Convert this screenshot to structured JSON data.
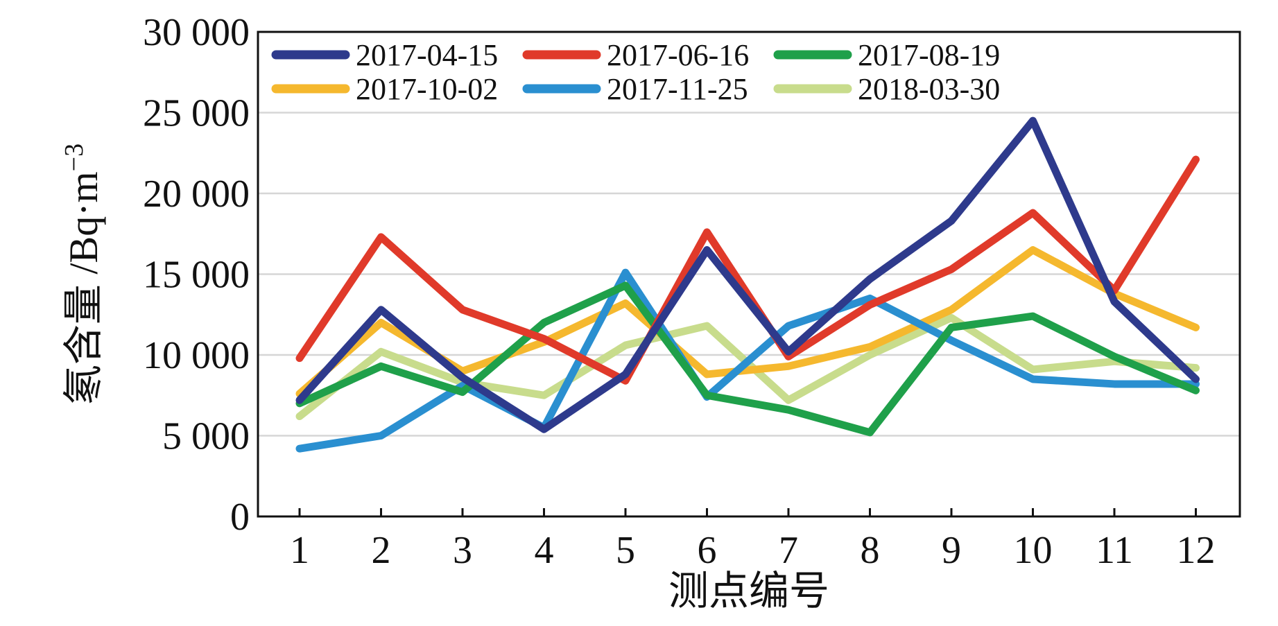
{
  "chart_data": {
    "type": "line",
    "title": "",
    "xlabel": "测点编号",
    "ylabel": "氡含量 /Bq·m",
    "ylabel_exponent": "−3",
    "categories": [
      "1",
      "2",
      "3",
      "4",
      "5",
      "6",
      "7",
      "8",
      "9",
      "10",
      "11",
      "12"
    ],
    "ylim": [
      0,
      30000
    ],
    "yticks": [
      {
        "value": 0,
        "label": "0"
      },
      {
        "value": 5000,
        "label": "5 000"
      },
      {
        "value": 10000,
        "label": "10 000"
      },
      {
        "value": 15000,
        "label": "15 000"
      },
      {
        "value": 20000,
        "label": "20 000"
      },
      {
        "value": 25000,
        "label": "25 000"
      },
      {
        "value": 30000,
        "label": "30 000"
      }
    ],
    "grid": true,
    "legend_position": "top-left",
    "series": [
      {
        "name": "2017-04-15",
        "color": "#2e3a8c",
        "values": [
          7200,
          12800,
          8600,
          5400,
          8800,
          16500,
          10200,
          14700,
          18300,
          24500,
          13300,
          8500
        ]
      },
      {
        "name": "2017-06-16",
        "color": "#e03a2a",
        "values": [
          9800,
          17300,
          12800,
          11000,
          8400,
          17600,
          9900,
          13100,
          15300,
          18800,
          14000,
          22100
        ]
      },
      {
        "name": "2017-08-19",
        "color": "#1fa04a",
        "values": [
          7000,
          9300,
          7700,
          12000,
          14300,
          7500,
          6600,
          5200,
          11700,
          12400,
          9900,
          7800
        ]
      },
      {
        "name": "2017-10-02",
        "color": "#f5b82e",
        "values": [
          7600,
          12000,
          9000,
          10800,
          13200,
          8800,
          9300,
          10500,
          12800,
          16500,
          13800,
          11700
        ]
      },
      {
        "name": "2017-11-25",
        "color": "#2a8fd0",
        "values": [
          4200,
          5000,
          8100,
          5500,
          15100,
          7400,
          11800,
          13500,
          10900,
          8500,
          8200,
          8200
        ]
      },
      {
        "name": "2018-03-30",
        "color": "#c8dc8c",
        "values": [
          6200,
          10200,
          8300,
          7500,
          10600,
          11800,
          7200,
          10000,
          12300,
          9100,
          9600,
          9200
        ]
      }
    ]
  }
}
